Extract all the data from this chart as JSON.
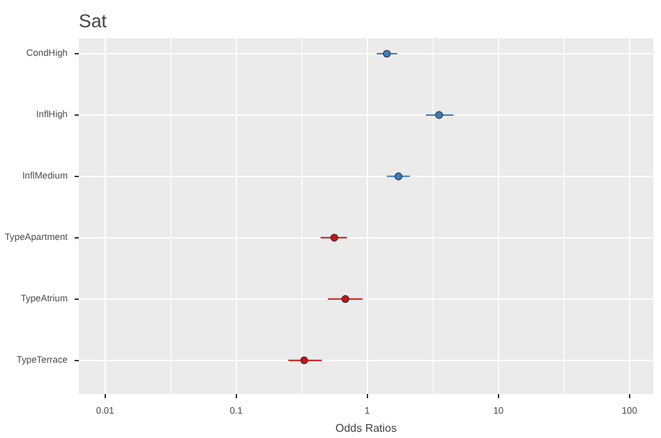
{
  "chart_data": {
    "type": "scatter",
    "orientation": "horizontal",
    "title": "Sat",
    "xlabel": "Odds Ratios",
    "categories": [
      "CondHigh",
      "InflHigh",
      "InflMedium",
      "TypeApartment",
      "TypeAtrium",
      "TypeTerrace"
    ],
    "series": [
      {
        "color": "#3a7cc0",
        "values": [
          1.41,
          3.53,
          1.73,
          null,
          null,
          null
        ],
        "errors": [
          [
            1.18,
            1.69
          ],
          [
            2.8,
            4.54
          ],
          [
            1.41,
            2.11
          ],
          null,
          null,
          null
        ]
      },
      {
        "color": "#cc1111",
        "values": [
          null,
          null,
          null,
          0.56,
          0.68,
          0.33
        ],
        "errors": [
          null,
          null,
          null,
          [
            0.44,
            0.7
          ],
          [
            0.5,
            0.92
          ],
          [
            0.25,
            0.45
          ]
        ]
      }
    ],
    "log": "x",
    "xlim": [
      0.0063,
      152
    ],
    "xticks": [
      0.01,
      0.1,
      1,
      10,
      100
    ],
    "grid": true,
    "marker": "circle"
  }
}
